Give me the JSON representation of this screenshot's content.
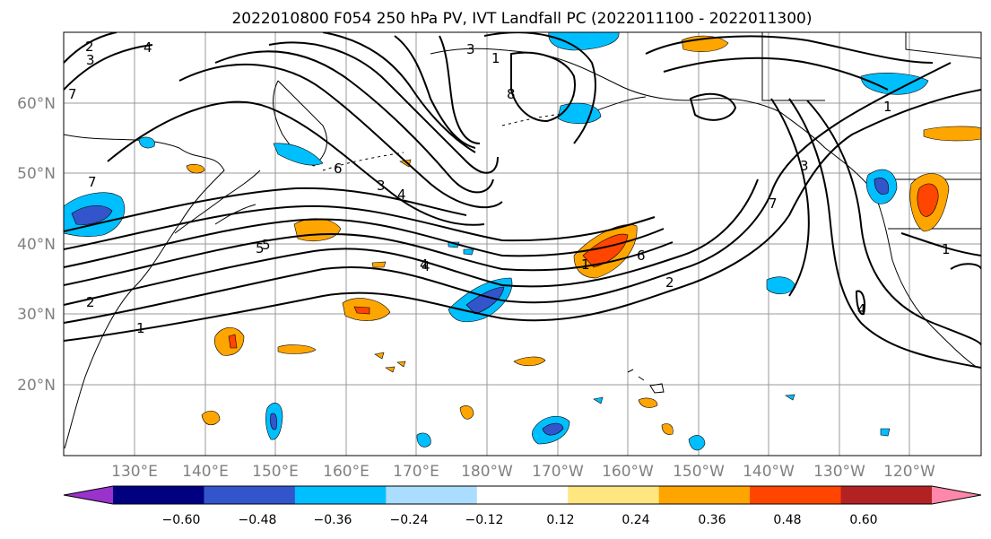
{
  "title": "2022010800 F054 250 hPa PV, IVT Landfall PC (2022011100 - 2022011300)",
  "lat_labels": [
    "60°N",
    "50°N",
    "40°N",
    "30°N",
    "20°N"
  ],
  "lon_labels": [
    "130°E",
    "140°E",
    "150°E",
    "160°E",
    "170°E",
    "180°W",
    "170°W",
    "160°W",
    "150°W",
    "140°W",
    "130°W",
    "120°W"
  ],
  "colorbar": {
    "ticks": [
      "−0.60",
      "−0.48",
      "−0.36",
      "−0.24",
      "−0.12",
      "0.12",
      "0.24",
      "0.36",
      "0.48",
      "0.60"
    ],
    "colors": [
      "#9933cc",
      "#000080",
      "#3355cc",
      "#00bfff",
      "#aaddff",
      "#ffffff",
      "#ffe680",
      "#ffa500",
      "#ff4500",
      "#b22222",
      "#ff88aa"
    ]
  },
  "contour_labels": [
    "2",
    "3",
    "4",
    "7",
    "3",
    "8",
    "1",
    "4",
    "7",
    "6",
    "5",
    "4",
    "3",
    "1",
    "7",
    "5",
    "4",
    "6",
    "2",
    "1",
    "1",
    "2",
    "1",
    "4",
    "3"
  ]
}
